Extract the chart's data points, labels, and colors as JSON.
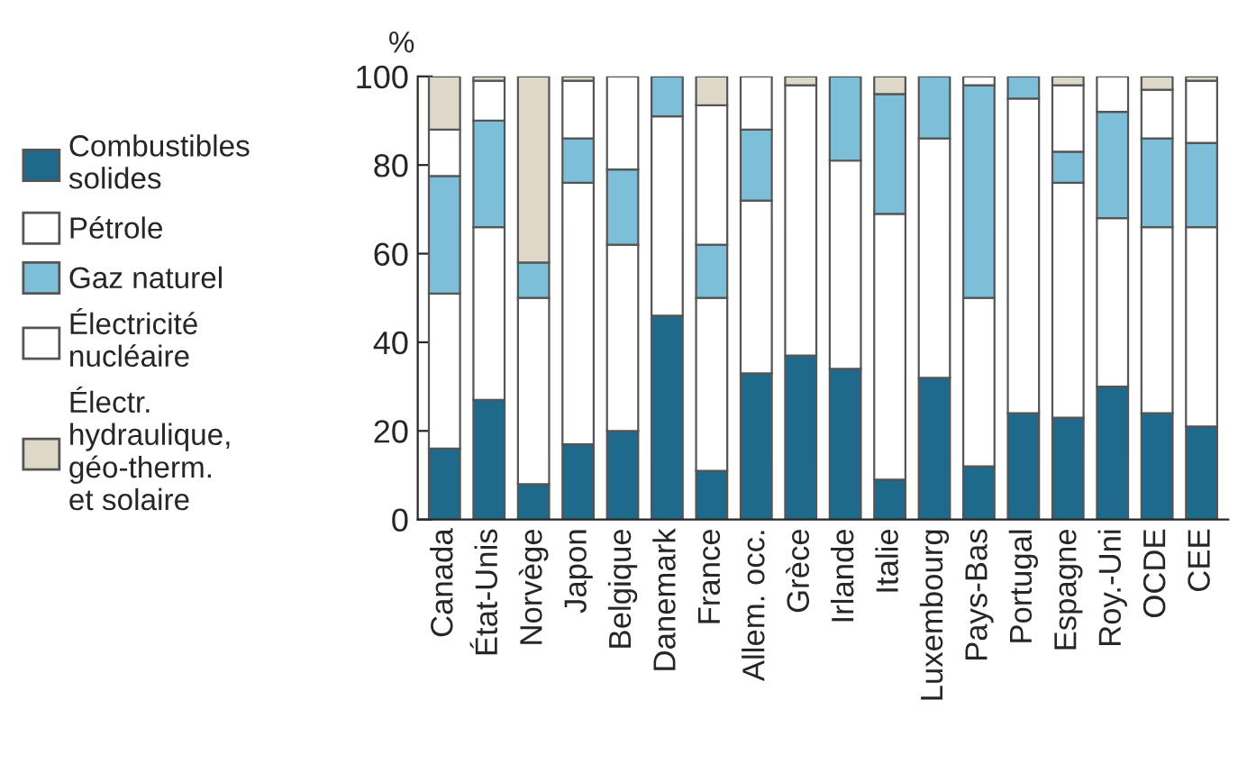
{
  "chart_data": {
    "type": "bar",
    "stacked": true,
    "ylabel": "%",
    "categories": [
      "Canada",
      "État-Unis",
      "Norvège",
      "Japon",
      "Belgique",
      "Danemark",
      "France",
      "Allem. occ.",
      "Grèce",
      "Irlande",
      "Italie",
      "Luxembourg",
      "Pays-Bas",
      "Portugal",
      "Espagne",
      "Roy.-Uni",
      "OCDE",
      "CEE"
    ],
    "series": [
      {
        "name": "Combustibles\nsolides",
        "color": "#1d6a8c",
        "values": [
          16,
          27,
          8,
          17,
          20,
          46,
          11,
          33,
          37,
          34,
          9,
          32,
          12,
          24,
          23,
          30,
          24,
          21
        ]
      },
      {
        "name": "Pétrole",
        "color": "#ffffff",
        "values": [
          35,
          39,
          42,
          59,
          42,
          45,
          39,
          39,
          61,
          47,
          60,
          54,
          38,
          71,
          53,
          38,
          42,
          45
        ]
      },
      {
        "name": "Gaz naturel",
        "color": "#7dbfd8",
        "values": [
          26.5,
          24,
          8,
          10,
          17,
          9,
          12,
          16,
          0,
          19,
          27,
          14,
          48,
          5,
          7,
          24,
          20,
          19
        ]
      },
      {
        "name": "Électricité\nnucléaire",
        "color": "#ffffff",
        "values": [
          10.5,
          9,
          0,
          13,
          21,
          0,
          31.5,
          12,
          0,
          0,
          0,
          0,
          2,
          0,
          15,
          8,
          11,
          14
        ]
      },
      {
        "name": "Électr.\nhydraulique,\ngéo-therm.\net solaire",
        "color": "#ddd8c8",
        "values": [
          12,
          1,
          42,
          1,
          0,
          0,
          6.5,
          0,
          2,
          0,
          4,
          0,
          0,
          0,
          2,
          0,
          3,
          1
        ]
      }
    ],
    "ylim": [
      0,
      100
    ],
    "yticks": [
      0,
      20,
      40,
      60,
      80,
      100
    ],
    "grid": false,
    "legend": "left"
  }
}
